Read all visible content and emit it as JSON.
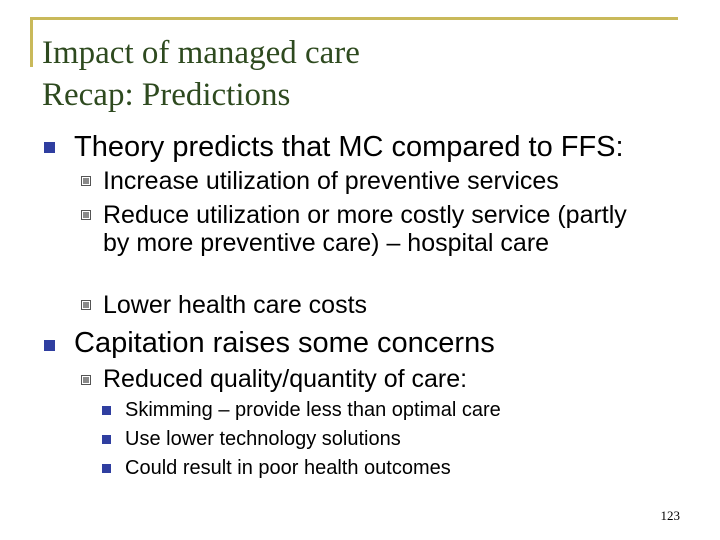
{
  "title": {
    "line1": "Impact of managed care",
    "line2": "Recap: Predictions"
  },
  "bullets": {
    "theory": {
      "text": "Theory predicts that MC compared to FFS:",
      "sub": [
        "Increase utilization of preventive services",
        "Reduce utilization or more costly service (partly by more preventive care) – hospital care",
        "Lower health care costs"
      ]
    },
    "capitation": {
      "text": "Capitation raises some concerns",
      "sub": "Reduced quality/quantity of care:",
      "subsub": [
        "Skimming – provide less than optimal care",
        "Use lower technology solutions",
        "Could result in poor health outcomes"
      ]
    }
  },
  "page_number": "123"
}
